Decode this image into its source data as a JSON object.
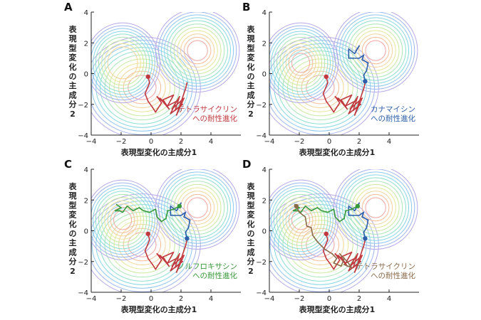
{
  "figure": {
    "ylabel_chars": [
      "表",
      "現",
      "型",
      "変",
      "化",
      "の",
      "主",
      "成",
      "分",
      "2"
    ]
  },
  "chart_data": [
    {
      "type": "line",
      "panel": "A",
      "xlabel": "表現型変化の主成分1",
      "ylabel": "表現型変化の主成分2",
      "xlim": [
        -4,
        6
      ],
      "ylim": [
        -4,
        4
      ],
      "xticks": [
        -4,
        -2,
        0,
        2,
        4
      ],
      "yticks": [
        -4,
        -2,
        0,
        2,
        4
      ],
      "series": [
        {
          "name": "テトラサイクリンへの耐性進化",
          "label_lines": [
            "テトラサイクリン",
            "への耐性進化"
          ],
          "color": "#c0393f",
          "x": [
            -0.2,
            -0.1,
            -0.4,
            -0.2,
            0.1,
            0.3,
            0.7,
            0.4,
            1.0,
            0.6,
            1.2,
            0.8,
            1.5,
            1.1,
            1.7,
            1.3,
            2.1,
            1.6,
            1.9,
            1.4,
            2.2,
            1.7,
            2.3,
            2.4
          ],
          "y": [
            -0.2,
            -0.6,
            -1.3,
            -1.8,
            -2.2,
            -2.5,
            -1.9,
            -1.5,
            -2.0,
            -1.6,
            -2.3,
            -1.7,
            -1.4,
            -2.1,
            -1.8,
            -2.6,
            -2.0,
            -2.4,
            -1.5,
            -2.3,
            -1.6,
            -2.7,
            -1.0,
            -0.6
          ]
        }
      ]
    },
    {
      "type": "line",
      "panel": "B",
      "xlabel": "表現型変化の主成分1",
      "ylabel": "表現型変化の主成分2",
      "xlim": [
        -4,
        6
      ],
      "ylim": [
        -4,
        4
      ],
      "xticks": [
        -4,
        -2,
        0,
        2,
        4
      ],
      "yticks": [
        -4,
        -2,
        0,
        2,
        4
      ],
      "series": [
        {
          "name": "カナマイシンへの耐性進化",
          "label_lines": [
            "カナマイシン",
            "への耐性進化"
          ],
          "color": "#2e5fab",
          "x": [
            2.4,
            2.3,
            2.5,
            2.6,
            2.2,
            2.3,
            2.0,
            1.3,
            1.3,
            1.7,
            2.0,
            1.8
          ],
          "y": [
            -0.5,
            -0.1,
            0.2,
            0.7,
            0.9,
            1.2,
            1.0,
            1.0,
            1.6,
            1.3,
            1.8,
            1.5
          ]
        },
        {
          "name": "",
          "color": "#c0393f",
          "x": [
            -0.2,
            -0.1,
            -0.4,
            -0.2,
            0.1,
            0.3,
            0.7,
            0.4,
            1.0,
            0.6,
            1.2,
            0.8,
            1.5,
            1.1,
            1.7,
            1.3,
            2.1,
            1.6,
            1.9,
            1.4,
            2.2,
            1.7,
            2.3,
            2.4
          ],
          "y": [
            -0.2,
            -0.6,
            -1.3,
            -1.8,
            -2.2,
            -2.5,
            -1.9,
            -1.5,
            -2.0,
            -1.6,
            -2.3,
            -1.7,
            -1.4,
            -2.1,
            -1.8,
            -2.6,
            -2.0,
            -2.4,
            -1.5,
            -2.3,
            -1.6,
            -2.7,
            -1.0,
            -0.6
          ]
        }
      ]
    },
    {
      "type": "line",
      "panel": "C",
      "xlabel": "表現型変化の主成分1",
      "ylabel": "表現型変化の主成分2",
      "xlim": [
        -4,
        6
      ],
      "ylim": [
        -4,
        4
      ],
      "xticks": [
        -4,
        -2,
        0,
        2,
        4
      ],
      "yticks": [
        -4,
        -2,
        0,
        2,
        4
      ],
      "series": [
        {
          "name": "ノルフロキサシンへの耐性進化",
          "label_lines": [
            "ノルフロキサシン",
            "への耐性進化"
          ],
          "color": "#3a9a3c",
          "x": [
            1.9,
            1.5,
            1.1,
            1.0,
            0.7,
            0.4,
            0.3,
            -0.1,
            -0.5,
            -0.8,
            -1.2,
            -1.6,
            -1.9,
            -2.1,
            -2.4,
            -2.0,
            -2.3
          ],
          "y": [
            1.6,
            1.4,
            1.3,
            0.8,
            0.6,
            0.9,
            1.4,
            1.2,
            1.3,
            1.5,
            1.3,
            1.6,
            1.2,
            1.3,
            1.3,
            1.5,
            1.7
          ]
        },
        {
          "name": "",
          "color": "#2e5fab",
          "x": [
            2.4,
            2.3,
            2.5,
            2.6,
            2.2,
            2.3,
            2.0,
            1.3,
            1.3,
            1.7,
            2.0,
            1.8
          ],
          "y": [
            -0.5,
            -0.1,
            0.2,
            0.7,
            0.9,
            1.2,
            1.0,
            1.0,
            1.6,
            1.3,
            1.8,
            1.5
          ]
        },
        {
          "name": "",
          "color": "#c0393f",
          "x": [
            -0.2,
            -0.1,
            -0.4,
            -0.2,
            0.1,
            0.3,
            0.7,
            0.4,
            1.0,
            0.6,
            1.2,
            0.8,
            1.5,
            1.1,
            1.7,
            1.3,
            2.1,
            1.6,
            1.9,
            1.4,
            2.2,
            1.7,
            2.3,
            2.4
          ],
          "y": [
            -0.2,
            -0.6,
            -1.3,
            -1.8,
            -2.2,
            -2.5,
            -1.9,
            -1.5,
            -2.0,
            -1.6,
            -2.3,
            -1.7,
            -1.4,
            -2.1,
            -1.8,
            -2.6,
            -2.0,
            -2.4,
            -1.5,
            -2.3,
            -1.6,
            -2.7,
            -1.0,
            -0.6
          ]
        }
      ]
    },
    {
      "type": "line",
      "panel": "D",
      "xlabel": "表現型変化の主成分1",
      "ylabel": "表現型変化の主成分2",
      "xlim": [
        -4,
        6
      ],
      "ylim": [
        -4,
        4
      ],
      "xticks": [
        -4,
        -2,
        0,
        2,
        4
      ],
      "yticks": [
        -4,
        -2,
        0,
        2,
        4
      ],
      "series": [
        {
          "name": "テトラサイクリンへの耐性進化",
          "label_lines": [
            "テトラサイクリン",
            "への耐性進化"
          ],
          "color": "#8b6a4a",
          "x": [
            -2.2,
            -2.0,
            -1.6,
            -1.5,
            -1.2,
            -1.1,
            -0.8,
            -0.5,
            -0.3,
            0.2,
            0.5,
            0.3,
            0.8,
            1.0,
            0.7,
            1.2,
            1.5,
            1.0
          ],
          "y": [
            1.6,
            1.2,
            0.9,
            0.3,
            0.2,
            -0.3,
            -0.7,
            -1.0,
            -1.2,
            -1.5,
            -1.8,
            -2.1,
            -2.3,
            -1.8,
            -1.5,
            -2.0,
            -2.4,
            -2.2
          ]
        },
        {
          "name": "",
          "color": "#3a9a3c",
          "x": [
            1.9,
            1.5,
            1.1,
            1.0,
            0.7,
            0.4,
            0.3,
            -0.1,
            -0.5,
            -0.8,
            -1.2,
            -1.6,
            -1.9,
            -2.1,
            -2.4,
            -2.0,
            -2.3
          ],
          "y": [
            1.6,
            1.4,
            1.3,
            0.8,
            0.6,
            0.9,
            1.4,
            1.2,
            1.3,
            1.5,
            1.3,
            1.6,
            1.2,
            1.3,
            1.3,
            1.5,
            1.7
          ]
        },
        {
          "name": "",
          "color": "#2e5fab",
          "x": [
            2.4,
            2.3,
            2.5,
            2.6,
            2.2,
            2.3,
            2.0,
            1.3,
            1.3,
            1.7,
            2.0,
            1.8
          ],
          "y": [
            -0.5,
            -0.1,
            0.2,
            0.7,
            0.9,
            1.2,
            1.0,
            1.0,
            1.6,
            1.3,
            1.8,
            1.5
          ]
        },
        {
          "name": "",
          "color": "#c0393f",
          "x": [
            -0.2,
            -0.1,
            -0.4,
            -0.2,
            0.1,
            0.3,
            0.7,
            0.4,
            1.0,
            0.6,
            1.2,
            0.8,
            1.5,
            1.1,
            1.7,
            1.3,
            2.1,
            1.6,
            1.9,
            1.4,
            2.2,
            1.7,
            2.3,
            2.4
          ],
          "y": [
            -0.2,
            -0.6,
            -1.3,
            -1.8,
            -2.2,
            -2.5,
            -1.9,
            -1.5,
            -2.0,
            -1.6,
            -2.3,
            -1.7,
            -1.4,
            -2.1,
            -1.8,
            -2.6,
            -2.0,
            -2.4,
            -1.5,
            -2.3,
            -1.6,
            -2.7,
            -1.0,
            -0.6
          ]
        }
      ]
    }
  ]
}
